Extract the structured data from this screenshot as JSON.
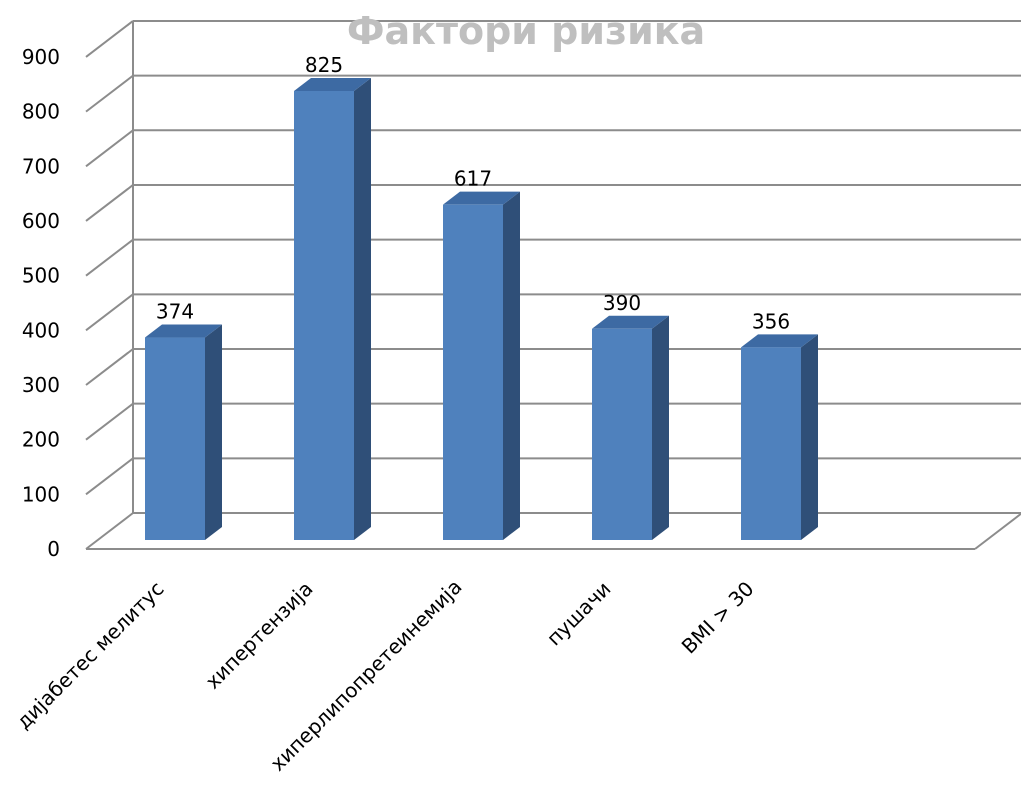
{
  "chart_data": {
    "type": "bar",
    "title": "Фактори ризика",
    "categories": [
      "дијабетес мелитус",
      "хипертензија",
      "хиперлипопретеинемија",
      "пушачи",
      "BMI > 30"
    ],
    "series": [
      {
        "values": [
          374,
          825,
          617,
          390,
          356
        ]
      }
    ],
    "ylim": [
      0,
      900
    ],
    "yticks": [
      0,
      100,
      200,
      300,
      400,
      500,
      600,
      700,
      800,
      900
    ],
    "xlabel": "",
    "ylabel": "",
    "grid": true,
    "legend": "none",
    "style": "3d-column",
    "colors": {
      "bar_front": "#4f81bd",
      "bar_side": "#2f4f78",
      "bar_top": "#3d6aa3",
      "gridline": "#8c8c8c",
      "title": "#bfbfbf",
      "text": "#000000"
    }
  }
}
